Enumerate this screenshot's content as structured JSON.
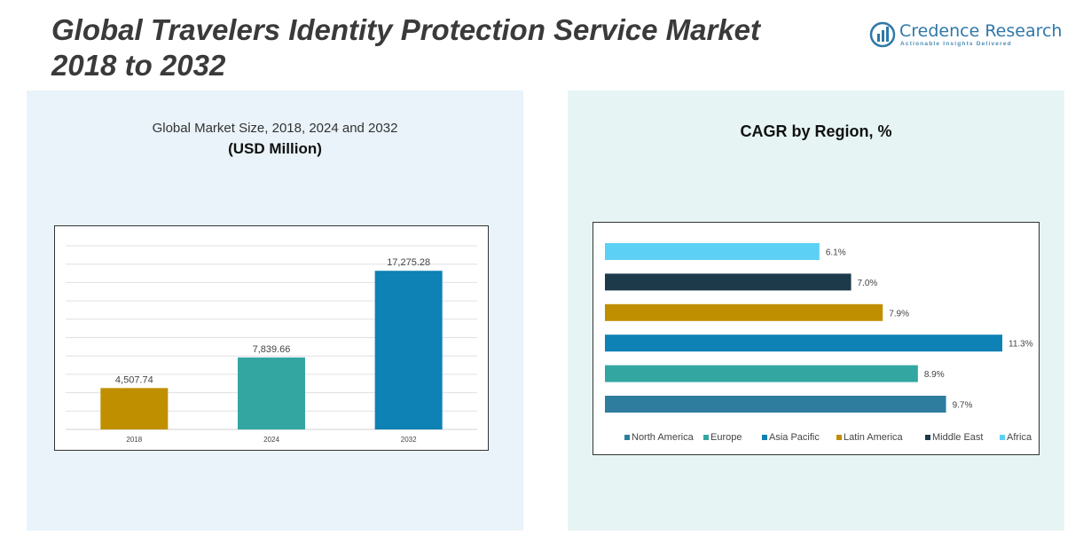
{
  "header": {
    "title": "Global Travelers Identity Protection Service Market 2018 to 2032"
  },
  "logo": {
    "name": "Credence Research",
    "tagline": "Actionable Insights Delivered",
    "icon": "bar-chart-logo-icon"
  },
  "chart_data": [
    {
      "type": "bar",
      "title": "Global Market Size, 2018, 2024 and 2032",
      "subtitle": "(USD Million)",
      "categories": [
        "2018",
        "2024",
        "2032"
      ],
      "values": [
        4507.74,
        7839.66,
        17275.28
      ],
      "value_labels": [
        "4,507.74",
        "7,839.66",
        "17,275.28"
      ],
      "colors": [
        "#c08f00",
        "#33a6a2",
        "#0e81b5"
      ],
      "ylim": [
        0,
        20000
      ],
      "grid": true
    },
    {
      "type": "bar",
      "orientation": "horizontal",
      "title": "CAGR by Region, %",
      "categories": [
        "North America",
        "Europe",
        "Asia Pacific",
        "Latin America",
        "Middle East",
        "Africa"
      ],
      "values": [
        9.7,
        8.9,
        11.3,
        7.9,
        7.0,
        6.1
      ],
      "value_labels": [
        "9.7%",
        "8.9%",
        "11.3%",
        "7.9%",
        "7.0%",
        "6.1%"
      ],
      "colors": [
        "#2e7d9e",
        "#33a6a2",
        "#0e81b5",
        "#c08f00",
        "#1c3a4a",
        "#5dd0f5"
      ],
      "xlim": [
        0,
        11.3
      ],
      "legend": "bottom"
    }
  ]
}
